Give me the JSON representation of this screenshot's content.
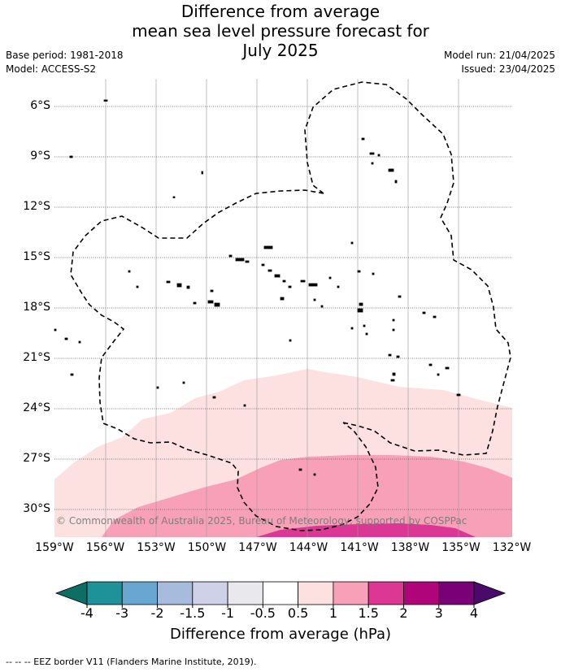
{
  "title": {
    "line1": "Difference from average",
    "line2": "mean sea level pressure forecast for",
    "line3": "July 2025"
  },
  "meta": {
    "base_period": "Base period: 1981-2018",
    "model": "Model: ACCESS-S2",
    "model_run": "Model run: 21/04/2025",
    "issued": "Issued: 23/04/2025"
  },
  "map": {
    "lat_labels": [
      "6°S",
      "9°S",
      "12°S",
      "15°S",
      "18°S",
      "21°S",
      "24°S",
      "27°S",
      "30°S"
    ],
    "lon_labels": [
      "159°W",
      "156°W",
      "153°W",
      "150°W",
      "147°W",
      "144°W",
      "141°W",
      "138°W",
      "135°W",
      "132°W"
    ],
    "copyright": "© Commonwealth of Australia 2025, Bureau of Meteorology, supported by COSPPac",
    "border_color": "#000000"
  },
  "colorbar": {
    "title": "Difference from average (hPa)",
    "tick_labels": [
      "-4",
      "-3",
      "-2",
      "-1.5",
      "-1",
      "-0.5",
      "0.5",
      "1",
      "1.5",
      "2",
      "3",
      "4"
    ],
    "colors": [
      "#0d6e63",
      "#1f9199",
      "#6aa7d0",
      "#a7bbdd",
      "#cfd1e8",
      "#e9e8ec",
      "#ffffff",
      "#fde0e0",
      "#f8a0b8",
      "#dc3795",
      "#b0047a",
      "#7a0077",
      "#4a0a6b"
    ]
  },
  "footer": {
    "legend": "--  --  -- EEZ border V11 (Flanders Marine Institute, 2019)."
  }
}
